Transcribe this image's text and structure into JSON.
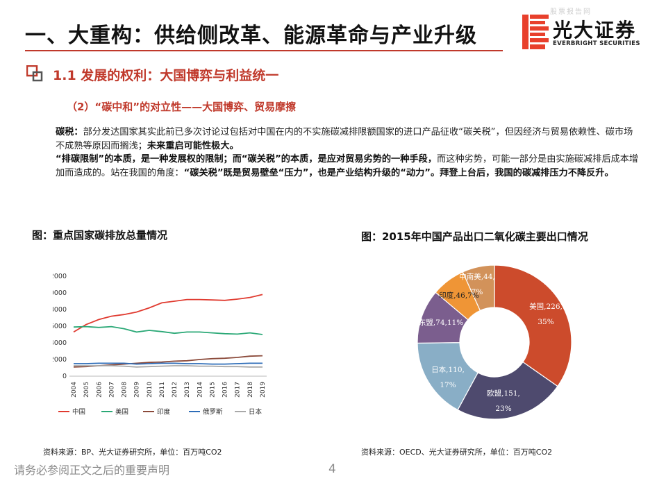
{
  "header": {
    "watermark": "股票报告网",
    "title": "一、大重构：供给侧改革、能源革命与产业升级",
    "logo_cn": "光大证券",
    "logo_en": "EVERBRIGHT SECURITIES",
    "brand_color": "#e8402c"
  },
  "section": {
    "title": "1.1 发展的权利：大国博弈与利益统一",
    "subtitle": "（2）“碳中和”的对立性——大国博弈、贸易摩擦"
  },
  "body": {
    "p1_label": "碳税：",
    "p1_text": "部分发达国家其实此前已多次讨论过包括对中国在内的不实施碳减排限额国家的进口产品征收“碳关税”，但因经济与贸易依赖性、碳市场不成熟等原因而搁浅；",
    "p1_bold": "未来重启可能性极大。",
    "p2_bold_a": "“排碳限制”的本质，是一种发展权的限制；而“碳关税”的本质，是应对贸易劣势的一种手段，",
    "p2_text_a": "而这种劣势，可能一部分是由实施碳减排后成本增加而造成的。站在我国的角度：",
    "p2_bold_b": "“碳关税”既是贸易壁垒“压力”，也是产业结构升级的“动力”。拜登上台后，我国的碳减排压力不降反升。"
  },
  "left_chart": {
    "title": "图：重点国家碳排放总量情况",
    "source": "资料来源：BP、光大证券研究所，单位：百万吨CO2"
  },
  "right_chart": {
    "title": "图：2015年中国产品出口二氧化碳主要出口情况",
    "source": "资料来源：OECD、光大证券研究所，单位：百万吨CO2"
  },
  "chart_data": [
    {
      "type": "line",
      "categories": [
        "2004",
        "2005",
        "2006",
        "2007",
        "2008",
        "2009",
        "2010",
        "2011",
        "2012",
        "2013",
        "2014",
        "2015",
        "2016",
        "2017",
        "2018",
        "2019"
      ],
      "ylim": [
        0,
        12000
      ],
      "yticks": [
        0,
        2000,
        4000,
        6000,
        8000,
        10000,
        12000
      ],
      "grid": false,
      "legend_position": "bottom",
      "series": [
        {
          "name": "中国",
          "color": "#e03a2f",
          "values": [
            5300,
            6200,
            6800,
            7200,
            7400,
            7700,
            8200,
            8800,
            9000,
            9200,
            9200,
            9150,
            9100,
            9250,
            9450,
            9800
          ]
        },
        {
          "name": "美国",
          "color": "#2aa876",
          "values": [
            5900,
            5950,
            5850,
            5950,
            5700,
            5300,
            5500,
            5350,
            5150,
            5300,
            5300,
            5200,
            5100,
            5050,
            5200,
            5000
          ]
        },
        {
          "name": "印度",
          "color": "#8b4a3a",
          "values": [
            1100,
            1150,
            1250,
            1350,
            1450,
            1550,
            1650,
            1700,
            1800,
            1850,
            2000,
            2100,
            2150,
            2250,
            2400,
            2450
          ]
        },
        {
          "name": "俄罗斯",
          "color": "#2e6db8",
          "values": [
            1500,
            1500,
            1550,
            1550,
            1550,
            1450,
            1500,
            1550,
            1550,
            1500,
            1500,
            1450,
            1450,
            1500,
            1550,
            1550
          ]
        },
        {
          "name": "日本",
          "color": "#a9a9a9",
          "values": [
            1250,
            1250,
            1250,
            1250,
            1200,
            1100,
            1150,
            1200,
            1250,
            1250,
            1200,
            1200,
            1150,
            1150,
            1100,
            1100
          ]
        }
      ]
    },
    {
      "type": "pie",
      "donut": true,
      "slices": [
        {
          "label": "美国",
          "value": 226,
          "percent": "35%",
          "color": "#cc4b2c"
        },
        {
          "label": "欧盟",
          "value": 151,
          "percent": "23%",
          "color": "#4e4a6e"
        },
        {
          "label": "日本",
          "value": 110,
          "percent": "17%",
          "color": "#89aec6"
        },
        {
          "label": "东盟",
          "value": 74,
          "percent": "11%",
          "color": "#7b5e8e"
        },
        {
          "label": "印度",
          "value": 46,
          "percent": "7%",
          "color": "#ef9536"
        },
        {
          "label": "中南美",
          "value": 44,
          "percent": "7%",
          "color": "#d2925a"
        }
      ]
    }
  ],
  "footer": {
    "disclaimer": "请务必参阅正文之后的重要声明",
    "page": "4"
  }
}
